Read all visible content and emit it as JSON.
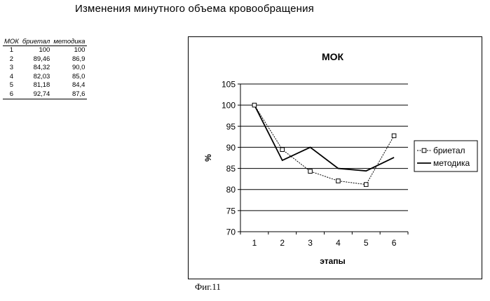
{
  "page": {
    "title": "Изменения минутного объема кровообращения",
    "caption": "Фиг.11"
  },
  "table": {
    "headers": [
      "МОК",
      "бриетал",
      "методика"
    ],
    "rows": [
      [
        "1",
        "100",
        "100"
      ],
      [
        "2",
        "89,46",
        "86,9"
      ],
      [
        "3",
        "84,32",
        "90,0"
      ],
      [
        "4",
        "82,03",
        "85,0"
      ],
      [
        "5",
        "81,18",
        "84,4"
      ],
      [
        "6",
        "92,74",
        "87,6"
      ]
    ]
  },
  "chart_data": {
    "type": "line",
    "title": "МОК",
    "xlabel": "этапы",
    "ylabel": "%",
    "categories": [
      "1",
      "2",
      "3",
      "4",
      "5",
      "6"
    ],
    "ylim": [
      70,
      105
    ],
    "yticks": [
      70,
      75,
      80,
      85,
      90,
      95,
      100,
      105
    ],
    "grid": true,
    "legend_position": "right",
    "series": [
      {
        "name": "бриетал",
        "marker": "square",
        "values": [
          100,
          89.46,
          84.32,
          82.03,
          81.18,
          92.74
        ]
      },
      {
        "name": "методика",
        "marker": "none",
        "values": [
          100,
          86.9,
          90.0,
          85.0,
          84.4,
          87.6
        ]
      }
    ]
  }
}
